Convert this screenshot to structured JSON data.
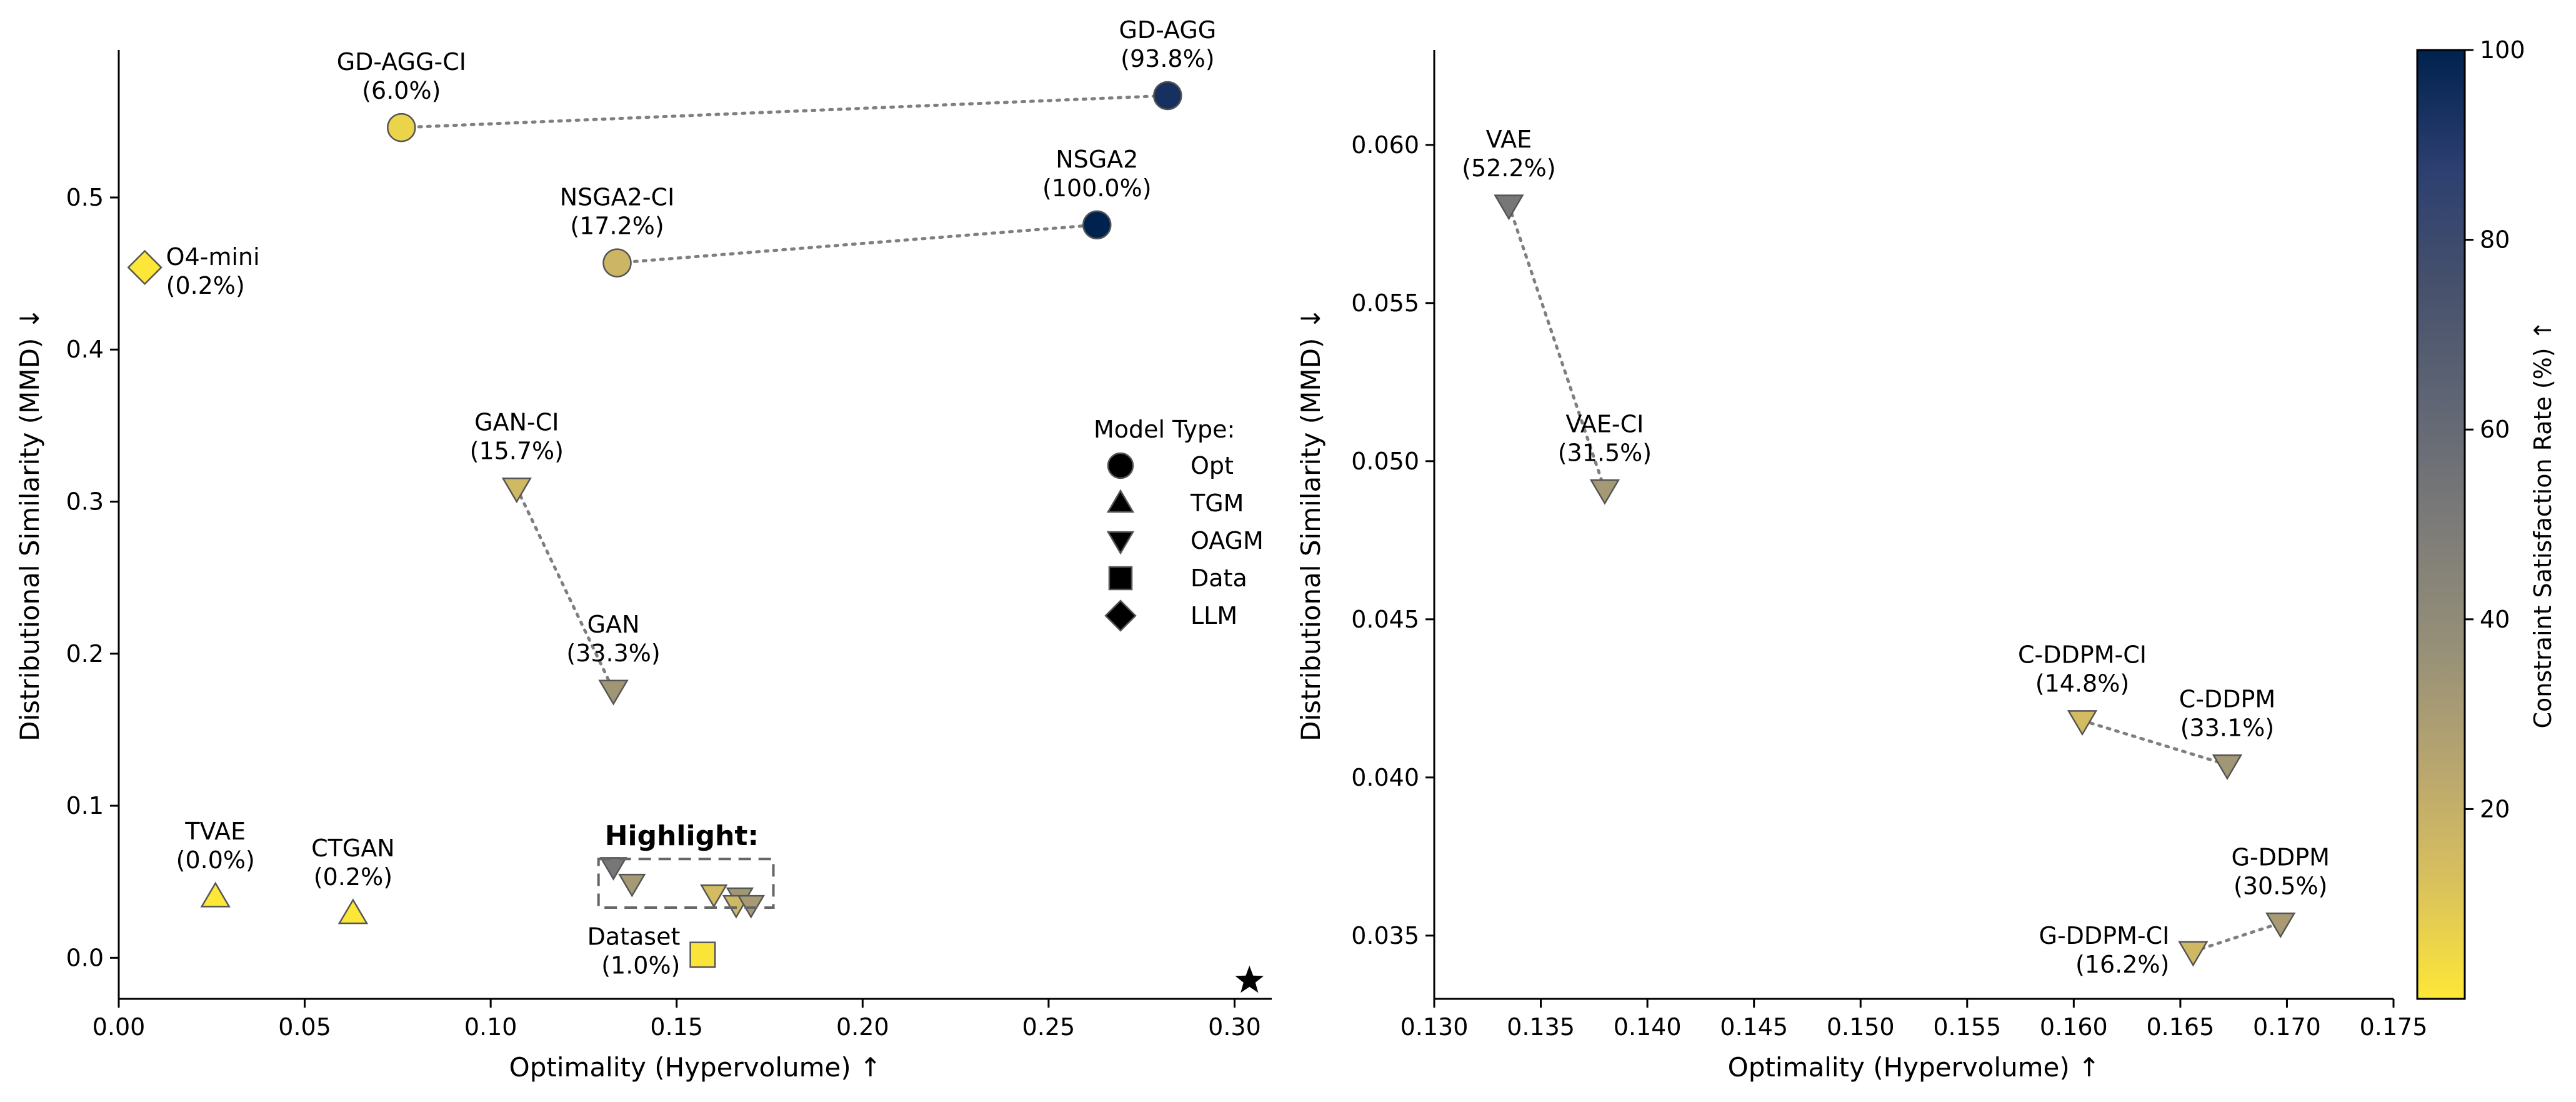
{
  "chart_data": [
    {
      "type": "scatter",
      "xlabel": "Optimality (Hypervolume)  ↑",
      "ylabel": "Distributional Similarity (MMD)  ↓",
      "xlim": [
        0.0,
        0.31
      ],
      "ylim": [
        -0.027,
        0.597
      ],
      "xticks": [
        "0.00",
        "0.05",
        "0.10",
        "0.15",
        "0.20",
        "0.25",
        "0.30"
      ],
      "yticks": [
        "0.0",
        "0.1",
        "0.2",
        "0.3",
        "0.4",
        "0.5"
      ],
      "grid": false,
      "points": [
        {
          "name": "GD-AGG-CI",
          "rate_label": "(6.0%)",
          "x": 0.076,
          "y": 0.546,
          "rate": 6.0,
          "marker": "circle"
        },
        {
          "name": "GD-AGG",
          "rate_label": "(93.8%)",
          "x": 0.282,
          "y": 0.567,
          "rate": 93.8,
          "marker": "circle"
        },
        {
          "name": "NSGA2-CI",
          "rate_label": "(17.2%)",
          "x": 0.134,
          "y": 0.457,
          "rate": 17.2,
          "marker": "circle"
        },
        {
          "name": "NSGA2",
          "rate_label": "(100.0%)",
          "x": 0.263,
          "y": 0.482,
          "rate": 100.0,
          "marker": "circle"
        },
        {
          "name": "O4-mini",
          "rate_label": "(0.2%)",
          "x": 0.007,
          "y": 0.454,
          "rate": 0.2,
          "marker": "diamond"
        },
        {
          "name": "GAN-CI",
          "rate_label": "(15.7%)",
          "x": 0.107,
          "y": 0.309,
          "rate": 15.7,
          "marker": "triangle-down"
        },
        {
          "name": "GAN",
          "rate_label": "(33.3%)",
          "x": 0.133,
          "y": 0.176,
          "rate": 33.3,
          "marker": "triangle-down"
        },
        {
          "name": "TVAE",
          "rate_label": "(0.0%)",
          "x": 0.026,
          "y": 0.04,
          "rate": 0.0,
          "marker": "triangle-up"
        },
        {
          "name": "CTGAN",
          "rate_label": "(0.2%)",
          "x": 0.063,
          "y": 0.029,
          "rate": 0.2,
          "marker": "triangle-up"
        },
        {
          "name": "Dataset",
          "rate_label": "(1.0%)",
          "x": 0.157,
          "y": 0.002,
          "rate": 1.0,
          "marker": "square"
        },
        {
          "name": "",
          "rate_label": "",
          "x": 0.133,
          "y": 0.06,
          "rate": 52.2,
          "marker": "triangle-down"
        },
        {
          "name": "",
          "rate_label": "",
          "x": 0.138,
          "y": 0.049,
          "rate": 31.5,
          "marker": "triangle-down"
        },
        {
          "name": "",
          "rate_label": "",
          "x": 0.16,
          "y": 0.042,
          "rate": 14.8,
          "marker": "triangle-down"
        },
        {
          "name": "",
          "rate_label": "",
          "x": 0.167,
          "y": 0.04,
          "rate": 33.1,
          "marker": "triangle-down"
        },
        {
          "name": "",
          "rate_label": "",
          "x": 0.166,
          "y": 0.035,
          "rate": 16.2,
          "marker": "triangle-down"
        },
        {
          "name": "",
          "rate_label": "",
          "x": 0.17,
          "y": 0.035,
          "rate": 30.5,
          "marker": "triangle-down"
        }
      ],
      "links": [
        [
          "GD-AGG-CI",
          "GD-AGG"
        ],
        [
          "NSGA2-CI",
          "NSGA2"
        ],
        [
          "GAN-CI",
          "GAN"
        ]
      ],
      "reference_star": {
        "x": 0.304,
        "y": -0.015
      },
      "highlight": {
        "label": "Highlight:",
        "x_range": [
          0.13,
          0.175
        ],
        "y_range": [
          0.033,
          0.065
        ]
      },
      "legend": {
        "title": "Model Type:",
        "placement": "right-middle",
        "entries": [
          {
            "label": "Opt",
            "marker": "circle"
          },
          {
            "label": "TGM",
            "marker": "triangle-up"
          },
          {
            "label": "OAGM",
            "marker": "triangle-down"
          },
          {
            "label": "Data",
            "marker": "square"
          },
          {
            "label": "LLM",
            "marker": "diamond"
          }
        ]
      }
    },
    {
      "type": "scatter",
      "xlabel": "Optimality (Hypervolume)  ↑",
      "ylabel": "Distributional Similarity (MMD)  ↓",
      "xlim": [
        0.13,
        0.175
      ],
      "ylim": [
        0.033,
        0.063
      ],
      "xticks": [
        "0.130",
        "0.135",
        "0.140",
        "0.145",
        "0.150",
        "0.155",
        "0.160",
        "0.165",
        "0.170",
        "0.175"
      ],
      "yticks": [
        "0.035",
        "0.040",
        "0.045",
        "0.050",
        "0.055",
        "0.060"
      ],
      "grid": false,
      "points": [
        {
          "name": "VAE",
          "rate_label": "(52.2%)",
          "x": 0.1335,
          "y": 0.0581,
          "rate": 52.2,
          "marker": "triangle-down"
        },
        {
          "name": "VAE-CI",
          "rate_label": "(31.5%)",
          "x": 0.138,
          "y": 0.0491,
          "rate": 31.5,
          "marker": "triangle-down"
        },
        {
          "name": "C-DDPM-CI",
          "rate_label": "(14.8%)",
          "x": 0.1604,
          "y": 0.0418,
          "rate": 14.8,
          "marker": "triangle-down"
        },
        {
          "name": "C-DDPM",
          "rate_label": "(33.1%)",
          "x": 0.1672,
          "y": 0.0404,
          "rate": 33.1,
          "marker": "triangle-down"
        },
        {
          "name": "G-DDPM-CI",
          "rate_label": "(16.2%)",
          "x": 0.1656,
          "y": 0.0345,
          "rate": 16.2,
          "marker": "triangle-down"
        },
        {
          "name": "G-DDPM",
          "rate_label": "(30.5%)",
          "x": 0.1697,
          "y": 0.0354,
          "rate": 30.5,
          "marker": "triangle-down"
        }
      ],
      "links": [
        [
          "VAE",
          "VAE-CI"
        ],
        [
          "C-DDPM-CI",
          "C-DDPM"
        ],
        [
          "G-DDPM-CI",
          "G-DDPM"
        ]
      ]
    }
  ],
  "colorbar": {
    "label": "Constraint Satisfaction Rate (%)  ↑",
    "range": [
      0,
      100
    ],
    "ticks": [
      "20",
      "40",
      "60",
      "80",
      "100"
    ],
    "colormap": "cividis_r",
    "stops": [
      "#fde737",
      "#d8c05e",
      "#b7a570",
      "#958f78",
      "#7c7b78",
      "#606674",
      "#47516c",
      "#2c3f70",
      "#00224e"
    ]
  },
  "colors": {
    "link": "#7f7f7f",
    "marker_edge": "#555555",
    "highlight_box": "#666666"
  }
}
